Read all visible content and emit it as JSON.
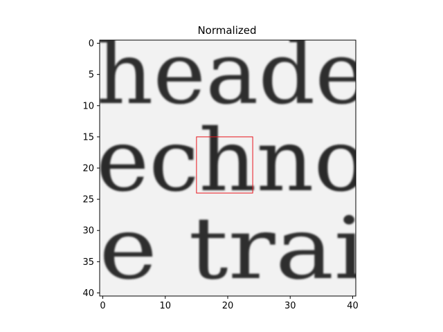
{
  "chart_data": {
    "type": "heatmap",
    "title": "Normalized",
    "xlabel": "",
    "ylabel": "",
    "xlim": [
      -0.5,
      40.5
    ],
    "ylim": [
      40.5,
      -0.5
    ],
    "x_ticks": [
      0,
      10,
      20,
      30,
      40
    ],
    "y_ticks": [
      0,
      5,
      10,
      15,
      20,
      25,
      30,
      35,
      40
    ],
    "colormap": "gray",
    "image_rows": 41,
    "image_cols": 41,
    "text_lines_in_image": [
      {
        "text": "heade",
        "row_top": 1,
        "row_bottom": 10
      },
      {
        "text": "echno",
        "row_top": 15,
        "row_bottom": 24
      },
      {
        "text": "e trai",
        "row_top": 29,
        "row_bottom": 39
      }
    ],
    "highlight_box": {
      "x0": 15,
      "y0": 15,
      "x1": 24,
      "y1": 24,
      "color": "#e8141c"
    }
  }
}
